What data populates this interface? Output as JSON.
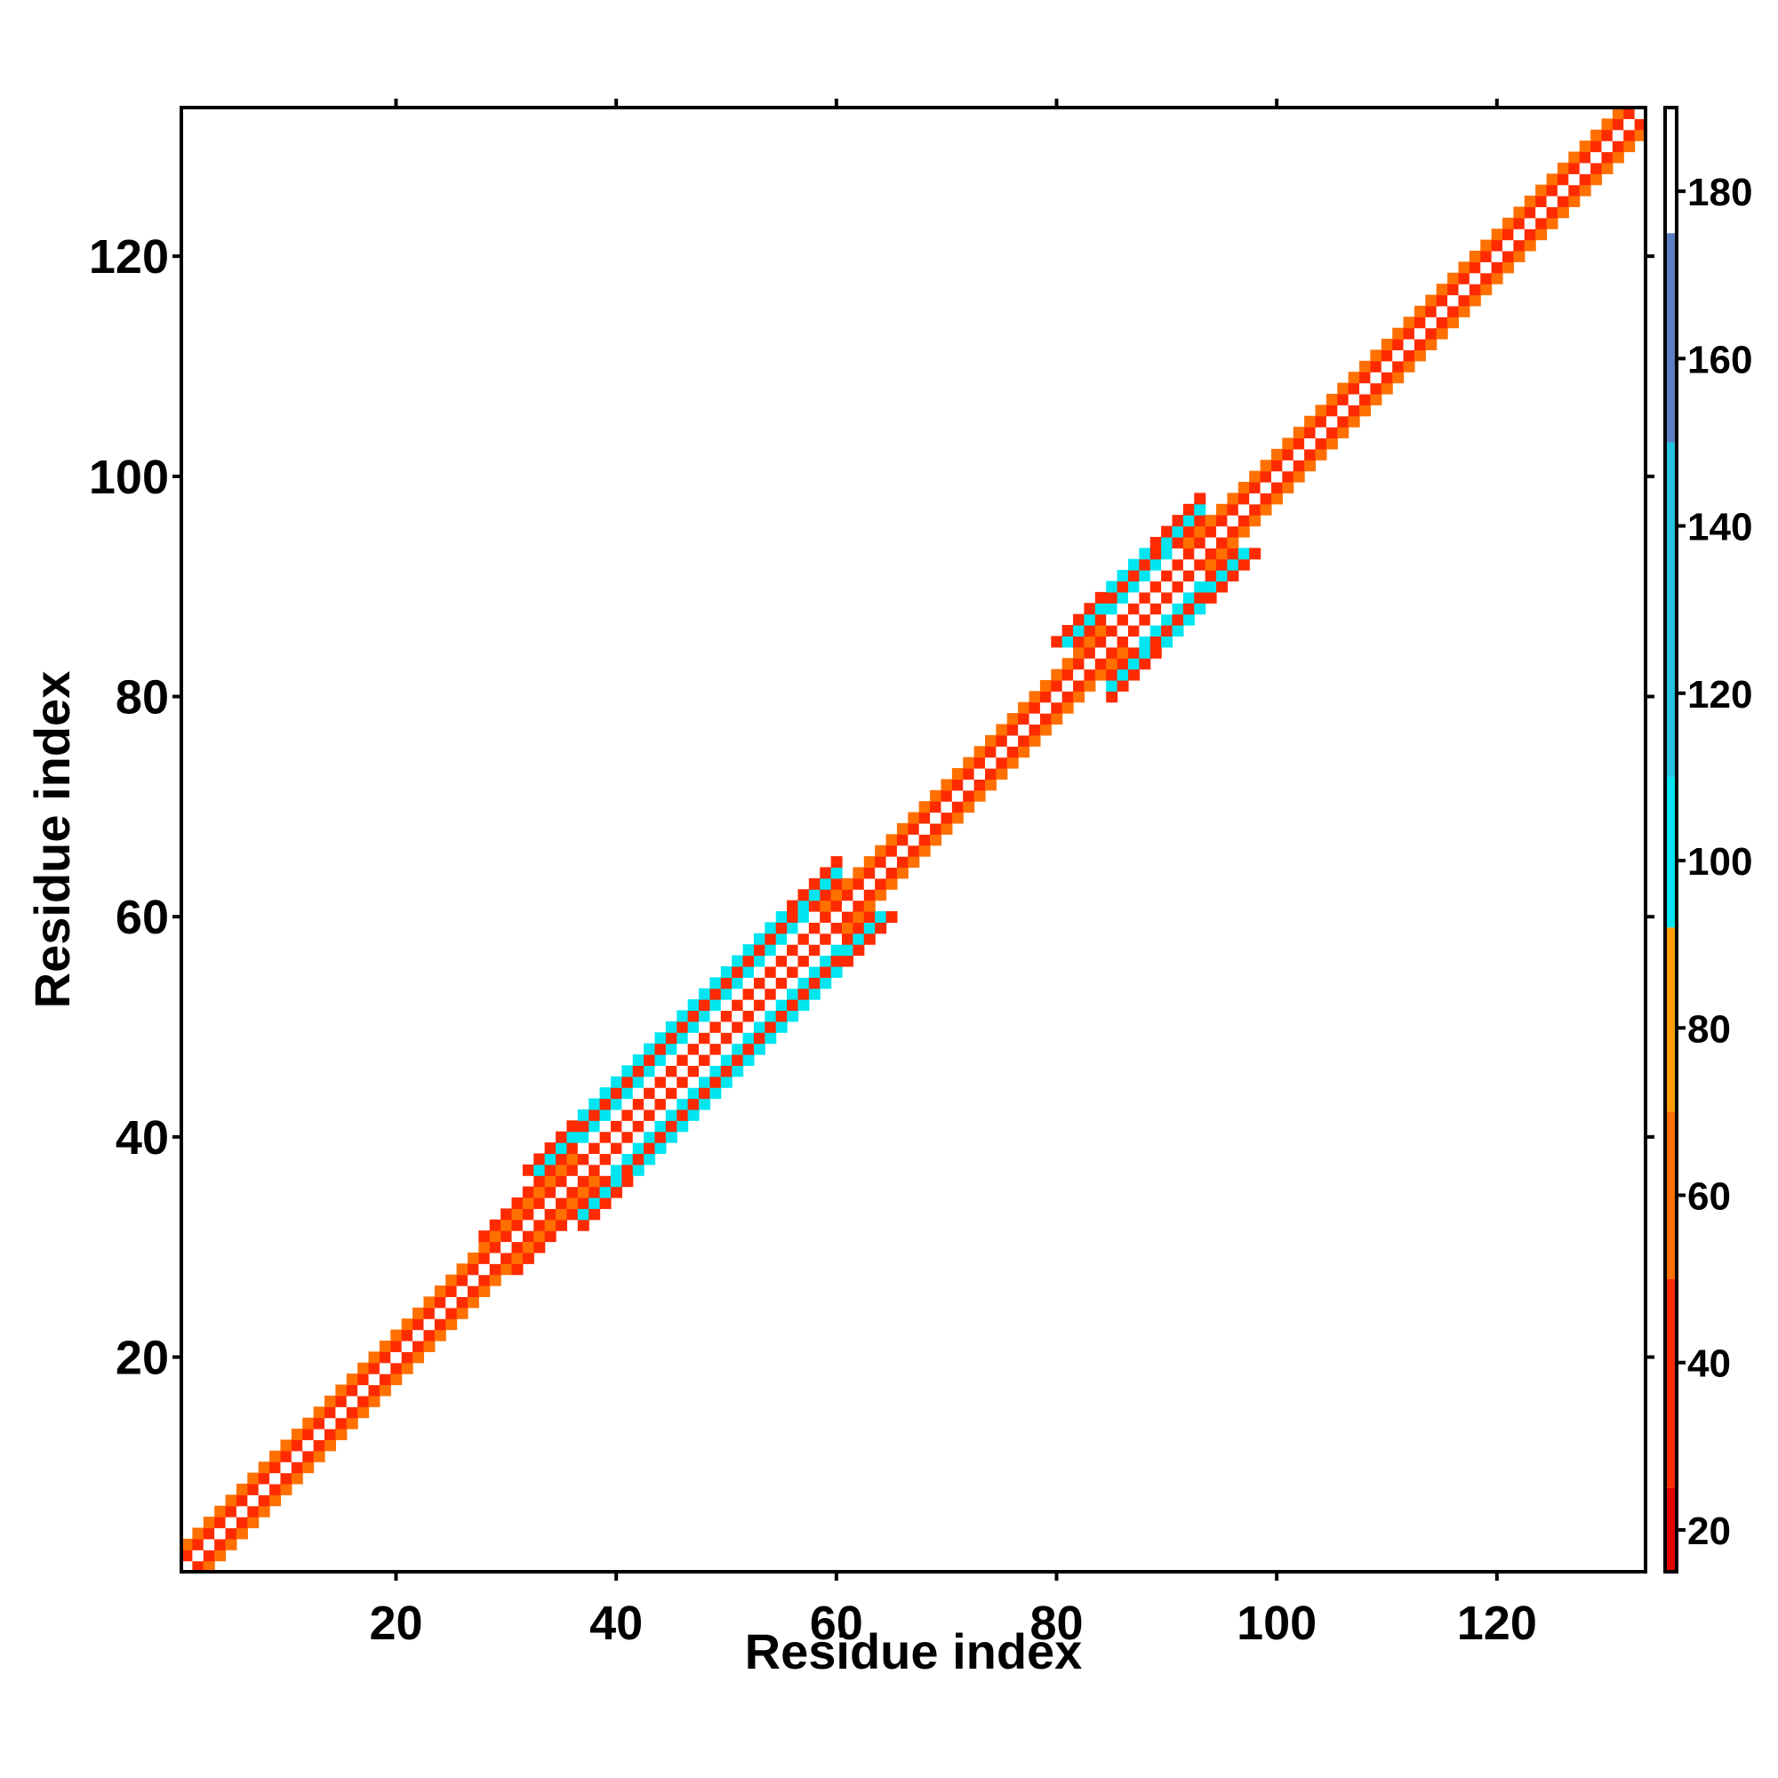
{
  "chart_data": {
    "type": "heatmap",
    "title": "",
    "xlabel": "Residue index",
    "ylabel": "Residue index",
    "xlim": [
      0.5,
      133.5
    ],
    "ylim": [
      0.5,
      133.5
    ],
    "x_ticks": [
      20,
      40,
      60,
      80,
      100,
      120
    ],
    "y_ticks": [
      20,
      40,
      60,
      80,
      100,
      120
    ],
    "n_residues": 133,
    "grid": false,
    "colorbar": {
      "placement": "right",
      "range": [
        15,
        190
      ],
      "ticks": [
        20,
        40,
        60,
        80,
        100,
        120,
        140,
        160,
        180
      ],
      "stops": [
        {
          "from": 15,
          "to": 25,
          "color": "#e40000"
        },
        {
          "from": 25,
          "to": 50,
          "color": "#ff2a00"
        },
        {
          "from": 50,
          "to": 70,
          "color": "#ff7000"
        },
        {
          "from": 70,
          "to": 92,
          "color": "#ff9e00"
        },
        {
          "from": 92,
          "to": 110,
          "color": "#00e6f0"
        },
        {
          "from": 110,
          "to": 150,
          "color": "#22c2e0"
        },
        {
          "from": 150,
          "to": 175,
          "color": "#5b7fc0"
        },
        {
          "from": 175,
          "to": 190,
          "color": "#ffffff"
        }
      ]
    },
    "band_half_width": [
      {
        "from": 1,
        "to": 30,
        "width": 2
      },
      {
        "from": 31,
        "to": 36,
        "width": 3
      },
      {
        "from": 37,
        "to": 60,
        "width": 5
      },
      {
        "from": 61,
        "to": 84,
        "width": 2
      },
      {
        "from": 85,
        "to": 93,
        "width": 5
      },
      {
        "from": 94,
        "to": 133,
        "width": 2
      }
    ],
    "value_pattern": {
      "description_values_by_offset": {
        "0": 185,
        "1": 30,
        "2": 60,
        "3": 30,
        "4": 100,
        "5": 30
      },
      "helical_regions": [
        [
          37,
          60
        ],
        [
          85,
          93
        ]
      ],
      "helix_values_by_offset": {
        "0": 185,
        "1": 30,
        "2": 185,
        "3": 100,
        "4": 30,
        "5": 100
      }
    }
  }
}
